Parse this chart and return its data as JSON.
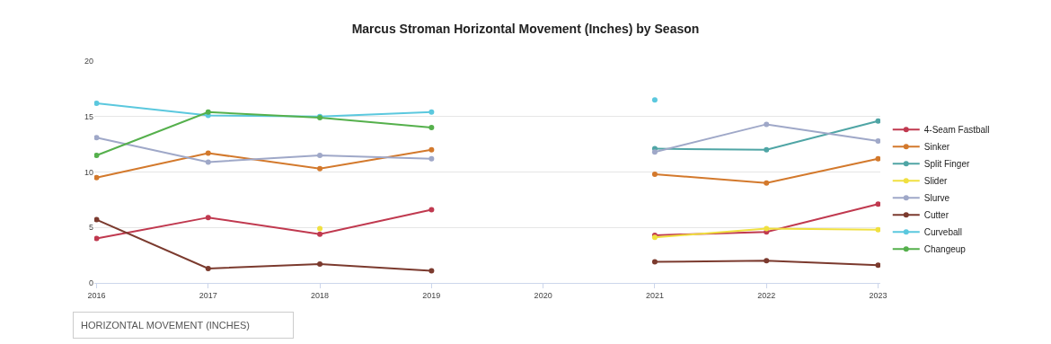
{
  "chart_data": {
    "type": "line",
    "title": "Marcus Stroman Horizontal Movement (Inches) by Season",
    "categories": [
      "2016",
      "2017",
      "2018",
      "2019",
      "2020",
      "2021",
      "2022",
      "2023"
    ],
    "series": [
      {
        "name": "4-Seam Fastball",
        "color": "#c0394f",
        "values": [
          4.0,
          5.9,
          4.4,
          6.6,
          null,
          4.3,
          4.6,
          7.1
        ]
      },
      {
        "name": "Sinker",
        "color": "#d3792c",
        "values": [
          9.5,
          11.7,
          10.3,
          12.0,
          null,
          9.8,
          9.0,
          11.2
        ]
      },
      {
        "name": "Split Finger",
        "color": "#4fa5a5",
        "values": [
          null,
          null,
          null,
          null,
          null,
          12.1,
          12.0,
          14.6
        ]
      },
      {
        "name": "Slider",
        "color": "#f0e040",
        "values": [
          null,
          null,
          4.9,
          null,
          null,
          4.1,
          4.9,
          4.8
        ]
      },
      {
        "name": "Slurve",
        "color": "#9fa8c8",
        "values": [
          13.1,
          10.9,
          11.5,
          11.2,
          null,
          11.8,
          14.3,
          12.8
        ]
      },
      {
        "name": "Cutter",
        "color": "#7b3a2e",
        "values": [
          5.7,
          1.3,
          1.7,
          1.1,
          null,
          1.9,
          2.0,
          1.6
        ]
      },
      {
        "name": "Curveball",
        "color": "#5bc8de",
        "values": [
          16.2,
          15.1,
          15.0,
          15.4,
          null,
          16.5,
          null,
          null
        ]
      },
      {
        "name": "Changeup",
        "color": "#55b04c",
        "values": [
          11.5,
          15.4,
          14.9,
          14.0,
          null,
          null,
          null,
          null
        ]
      }
    ],
    "ylim": [
      0,
      20
    ],
    "yticks": [
      0,
      5,
      10,
      15,
      20
    ],
    "grid": "y",
    "legend": "right",
    "marker": "circle",
    "line_style": "solid",
    "annotations": [
      "HORIZONTAL MOVEMENT (INCHES)"
    ]
  }
}
